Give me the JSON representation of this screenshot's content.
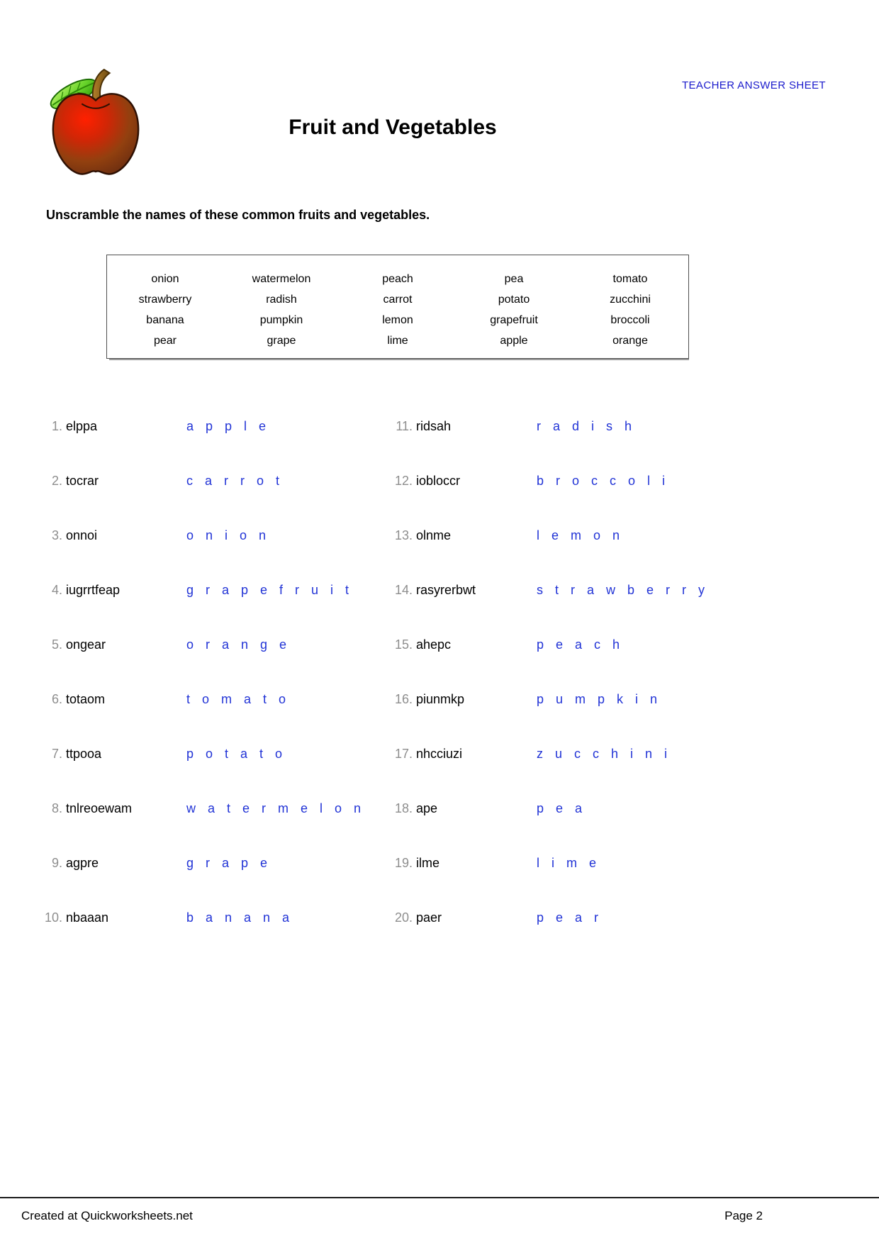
{
  "page": {
    "header_label": "TEACHER ANSWER SHEET",
    "title": "Fruit and Vegetables",
    "instruction": "Unscramble the names of these common fruits and vegetables.",
    "footer_left": "Created at Quickworksheets.net",
    "footer_right": "Page 2"
  },
  "icons": {
    "apple_clipart": "apple-clipart"
  },
  "colors": {
    "header_blue": "#1a1acc",
    "answer_blue": "#2133d6",
    "number_gray": "#8e8e8e",
    "apple_red": "#e01800",
    "apple_dark": "#7d3a16",
    "leaf_green": "#55c61e",
    "stem_brown": "#96671c"
  },
  "word_bank": {
    "columns": [
      [
        "onion",
        "strawberry",
        "banana",
        "pear"
      ],
      [
        "watermelon",
        "radish",
        "pumpkin",
        "grape"
      ],
      [
        "peach",
        "carrot",
        "lemon",
        "lime"
      ],
      [
        "pea",
        "potato",
        "grapefruit",
        "apple"
      ],
      [
        "tomato",
        "zucchini",
        "broccoli",
        "orange"
      ]
    ]
  },
  "questions": [
    {
      "num": "1.",
      "scrambled": "elppa",
      "answer": "apple"
    },
    {
      "num": "2.",
      "scrambled": "tocrar",
      "answer": "carrot"
    },
    {
      "num": "3.",
      "scrambled": "onnoi",
      "answer": "onion"
    },
    {
      "num": "4.",
      "scrambled": "iugrrtfeap",
      "answer": "grapefruit"
    },
    {
      "num": "5.",
      "scrambled": "ongear",
      "answer": "orange"
    },
    {
      "num": "6.",
      "scrambled": "totaom",
      "answer": "tomato"
    },
    {
      "num": "7.",
      "scrambled": "ttpooa",
      "answer": "potato"
    },
    {
      "num": "8.",
      "scrambled": "tnlreoewam",
      "answer": "watermelon"
    },
    {
      "num": "9.",
      "scrambled": "agpre",
      "answer": "grape"
    },
    {
      "num": "10.",
      "scrambled": "nbaaan",
      "answer": "banana"
    },
    {
      "num": "11.",
      "scrambled": "ridsah",
      "answer": "radish"
    },
    {
      "num": "12.",
      "scrambled": "iobloccr",
      "answer": "broccoli"
    },
    {
      "num": "13.",
      "scrambled": "olnme",
      "answer": "lemon"
    },
    {
      "num": "14.",
      "scrambled": "rasyrerbwt",
      "answer": "strawberry"
    },
    {
      "num": "15.",
      "scrambled": "ahepc",
      "answer": "peach"
    },
    {
      "num": "16.",
      "scrambled": "piunmkp",
      "answer": "pumpkin"
    },
    {
      "num": "17.",
      "scrambled": "nhcciuzi",
      "answer": "zucchini"
    },
    {
      "num": "18.",
      "scrambled": "ape",
      "answer": "pea"
    },
    {
      "num": "19.",
      "scrambled": "ilme",
      "answer": "lime"
    },
    {
      "num": "20.",
      "scrambled": "paer",
      "answer": "pear"
    }
  ]
}
